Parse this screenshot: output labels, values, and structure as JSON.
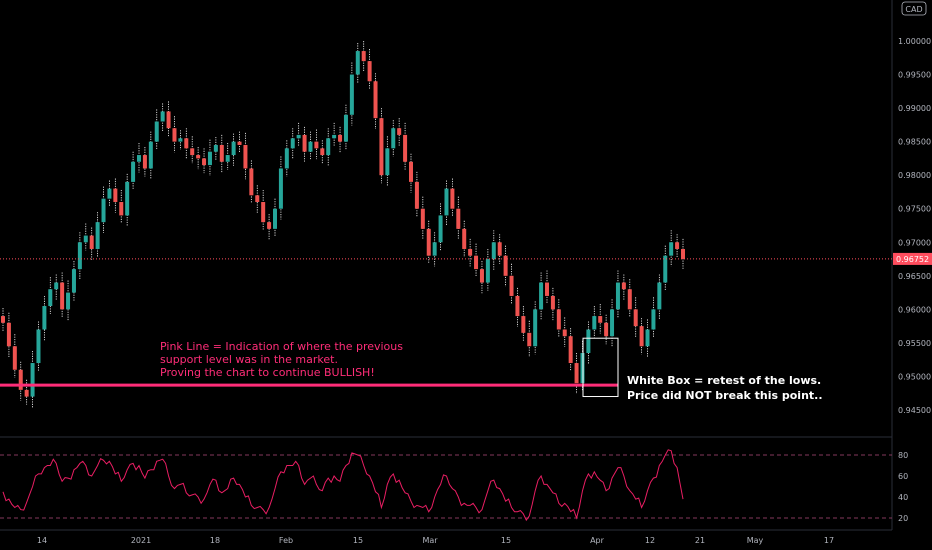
{
  "chart_data": {
    "type": "candlestick",
    "currency": "CAD",
    "price": {
      "ylim": [
        0.9425,
        1.0035
      ],
      "y_ticks": [
        0.945,
        0.95,
        0.955,
        0.96,
        0.965,
        0.97,
        0.975,
        0.98,
        0.985,
        0.99,
        0.995,
        1.0
      ],
      "y_tick_labels": [
        "0.94500",
        "0.95000",
        "0.95500",
        "0.96000",
        "0.96500",
        "0.97000",
        "0.97500",
        "0.98000",
        "0.98500",
        "0.99000",
        "0.99500",
        "1.00000"
      ],
      "last_price": 0.96752,
      "last_price_label": "0.96752",
      "series_close": [
        0.958,
        0.9545,
        0.951,
        0.948,
        0.947,
        0.952,
        0.957,
        0.9605,
        0.963,
        0.964,
        0.96,
        0.9625,
        0.966,
        0.97,
        0.971,
        0.969,
        0.973,
        0.9765,
        0.978,
        0.976,
        0.974,
        0.979,
        0.982,
        0.983,
        0.981,
        0.985,
        0.988,
        0.9895,
        0.987,
        0.985,
        0.9855,
        0.984,
        0.983,
        0.9825,
        0.9815,
        0.9835,
        0.9845,
        0.982,
        0.983,
        0.985,
        0.9845,
        0.981,
        0.977,
        0.976,
        0.973,
        0.972,
        0.975,
        0.981,
        0.984,
        0.9855,
        0.986,
        0.9835,
        0.985,
        0.984,
        0.983,
        0.9855,
        0.986,
        0.985,
        0.989,
        0.995,
        0.9985,
        0.997,
        0.994,
        0.9885,
        0.98,
        0.984,
        0.987,
        0.986,
        0.982,
        0.979,
        0.975,
        0.972,
        0.968,
        0.97,
        0.974,
        0.978,
        0.975,
        0.972,
        0.969,
        0.968,
        0.966,
        0.964,
        0.9675,
        0.97,
        0.968,
        0.965,
        0.962,
        0.959,
        0.9565,
        0.9545,
        0.96,
        0.964,
        0.962,
        0.96,
        0.957,
        0.956,
        0.952,
        0.949,
        0.9535,
        0.957,
        0.959,
        0.958,
        0.956,
        0.96,
        0.964,
        0.963,
        0.96,
        0.9575,
        0.9545,
        0.957,
        0.96,
        0.964,
        0.968,
        0.97,
        0.969,
        0.9675
      ]
    },
    "support_line": {
      "y": 0.9487
    },
    "retest_box": {
      "y_range": [
        0.9485,
        0.9557
      ]
    },
    "current_price_line": {
      "y": 0.96752
    },
    "x_axis": {
      "tick_labels": [
        "14",
        "2021",
        "18",
        "Feb",
        "15",
        "Mar",
        "15",
        "Apr",
        "12",
        "21",
        "May",
        "17"
      ]
    },
    "rsi": {
      "ylim": [
        10,
        90
      ],
      "y_ticks": [
        20,
        40,
        60,
        80
      ],
      "y_tick_labels": [
        "20",
        "40",
        "60",
        "80"
      ],
      "bands": [
        20,
        80
      ],
      "values": [
        45,
        38,
        30,
        28,
        35,
        50,
        62,
        68,
        70,
        72,
        55,
        58,
        66,
        72,
        70,
        60,
        70,
        75,
        74,
        62,
        55,
        66,
        72,
        70,
        58,
        66,
        74,
        76,
        60,
        48,
        52,
        44,
        42,
        40,
        38,
        52,
        56,
        44,
        48,
        58,
        52,
        40,
        32,
        30,
        28,
        30,
        48,
        64,
        70,
        70,
        70,
        52,
        58,
        52,
        46,
        58,
        60,
        55,
        70,
        82,
        80,
        70,
        60,
        45,
        30,
        52,
        62,
        56,
        44,
        36,
        32,
        30,
        26,
        40,
        52,
        60,
        48,
        40,
        34,
        32,
        30,
        28,
        46,
        56,
        48,
        36,
        30,
        26,
        24,
        22,
        46,
        60,
        52,
        44,
        34,
        34,
        26,
        20,
        46,
        62,
        64,
        56,
        46,
        58,
        68,
        60,
        46,
        38,
        30,
        46,
        58,
        70,
        80,
        84,
        68,
        38
      ]
    },
    "annotations": [
      {
        "id": "pink-note",
        "lines": [
          "Pink Line = Indication of where the previous",
          "support level was in the market.",
          "Proving the chart to continue BULLISH!"
        ]
      },
      {
        "id": "white-note",
        "lines": [
          "White Box = retest of the lows.",
          "Price did NOT break this point.."
        ]
      }
    ],
    "colors": {
      "background": "#000000",
      "up": "#26a69a",
      "down": "#ef5350",
      "wick_highlight": "#ffffff",
      "support": "#ff2d78",
      "price_line": "#ff4d5e",
      "rsi_line": "#e91e63",
      "grid_text": "#b2b5be",
      "divider": "#2a2e39"
    }
  }
}
